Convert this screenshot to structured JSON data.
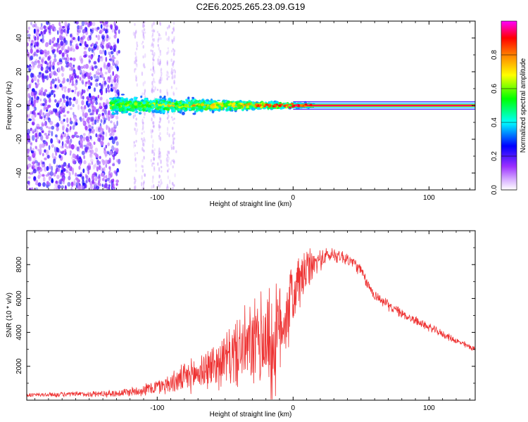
{
  "figure_title": "C2E6.2025.265.23.09.G19",
  "chart_data": [
    {
      "type": "heatmap",
      "name": "spectrogram",
      "xlabel": "Height of straight line (km)",
      "ylabel": "Frequency (Hz)",
      "xlim": [
        -196,
        134
      ],
      "ylim": [
        -50,
        50
      ],
      "x_ticks": [
        -100,
        0,
        100
      ],
      "y_ticks": [
        -40,
        -20,
        0,
        20,
        40
      ],
      "x_tick_labels": [
        "-100",
        "0",
        "100"
      ],
      "y_tick_labels": [
        "-40",
        "-20",
        "0",
        "20",
        "40"
      ],
      "colorbar": {
        "label": "Normalized spectral amplitude",
        "range": [
          0,
          1
        ],
        "ticks": [
          0.0,
          0.2,
          0.4,
          0.6,
          0.8
        ],
        "tick_labels": [
          "0.0",
          "0.2",
          "0.4",
          "0.6",
          "0.8"
        ],
        "colormap": [
          "#ffffff",
          "#9b30ff",
          "#0000ff",
          "#00ffff",
          "#00ff00",
          "#ffff00",
          "#ff8000",
          "#ff0000",
          "#ff00ff"
        ]
      },
      "regions": [
        {
          "desc": "broadband noise",
          "x_range": [
            -196,
            -128
          ],
          "freq_range": [
            -50,
            50
          ],
          "amplitude": [
            0.0,
            0.2
          ]
        },
        {
          "desc": "sparse noise streaks",
          "x_range": [
            -128,
            -84
          ],
          "freq_range": [
            -50,
            50
          ],
          "amplitude": [
            0.0,
            0.08
          ]
        },
        {
          "desc": "signal cluster",
          "x_range": [
            -134,
            15
          ],
          "freq_center": 0,
          "freq_spread": [
            5,
            1
          ],
          "amplitude": [
            0.1,
            0.7
          ]
        },
        {
          "desc": "clean carrier line",
          "x_range": [
            0,
            134
          ],
          "freq_center": 0,
          "amplitude": [
            0.8,
            1.0
          ]
        }
      ]
    },
    {
      "type": "line",
      "name": "snr",
      "xlabel": "Height of straight line (km)",
      "ylabel": "SNR (10 * v/v)",
      "xlim": [
        -196,
        134
      ],
      "ylim": [
        0,
        10000
      ],
      "x_ticks": [
        -100,
        0,
        100
      ],
      "y_ticks": [
        2000,
        4000,
        6000,
        8000
      ],
      "x_tick_labels": [
        "-100",
        "0",
        "100"
      ],
      "y_tick_labels": [
        "2000",
        "4000",
        "6000",
        "8000"
      ],
      "series": [
        {
          "name": "SNR",
          "color": "#ee3333",
          "x": [
            -196,
            -160,
            -130,
            -110,
            -90,
            -70,
            -50,
            -40,
            -30,
            -25,
            -20,
            -15,
            -10,
            -5,
            0,
            5,
            10,
            15,
            20,
            25,
            30,
            35,
            40,
            45,
            50,
            55,
            60,
            70,
            80,
            90,
            100,
            110,
            120,
            134
          ],
          "mean": [
            300,
            350,
            400,
            600,
            1000,
            1600,
            2400,
            2900,
            3200,
            3400,
            3800,
            3000,
            4200,
            5200,
            6200,
            7000,
            7600,
            8000,
            8300,
            8500,
            8600,
            8500,
            8300,
            8100,
            7600,
            6800,
            6200,
            5600,
            5100,
            4700,
            4300,
            3900,
            3500,
            3000
          ],
          "spread": [
            150,
            180,
            250,
            400,
            700,
            1300,
            1800,
            2500,
            3000,
            3300,
            3800,
            4200,
            3300,
            3000,
            2600,
            2100,
            1600,
            1000,
            700,
            600,
            500,
            500,
            500,
            450,
            450,
            400,
            380,
            350,
            320,
            300,
            280,
            250,
            220,
            200
          ]
        }
      ]
    }
  ]
}
